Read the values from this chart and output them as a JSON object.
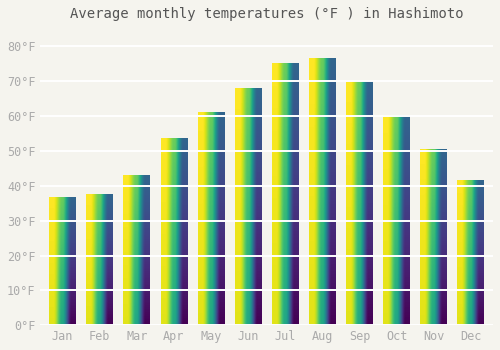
{
  "title": "Average monthly temperatures (°F ) in Hashimoto",
  "months": [
    "Jan",
    "Feb",
    "Mar",
    "Apr",
    "May",
    "Jun",
    "Jul",
    "Aug",
    "Sep",
    "Oct",
    "Nov",
    "Dec"
  ],
  "values": [
    36.5,
    37.5,
    43.0,
    53.5,
    61.0,
    68.0,
    75.0,
    76.5,
    70.0,
    60.0,
    50.5,
    41.5
  ],
  "ylim": [
    0,
    85
  ],
  "yticks": [
    0,
    10,
    20,
    30,
    40,
    50,
    60,
    70,
    80
  ],
  "ytick_labels": [
    "0°F",
    "10°F",
    "20°F",
    "30°F",
    "40°F",
    "50°F",
    "60°F",
    "70°F",
    "80°F"
  ],
  "background_color": "#f5f4ee",
  "grid_color": "#ffffff",
  "bar_color_main": "#F5A623",
  "bar_color_light": "#FFCD6B",
  "bar_edge_color": "none",
  "title_fontsize": 10,
  "tick_fontsize": 8.5,
  "tick_color": "#aaaaaa",
  "title_color": "#555555"
}
